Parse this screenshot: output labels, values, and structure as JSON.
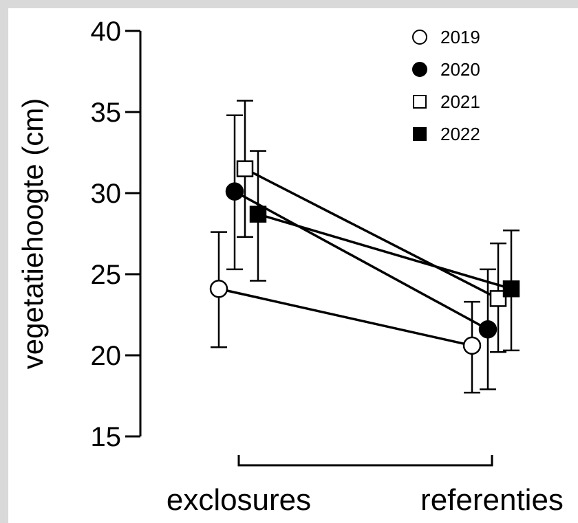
{
  "chart_data": {
    "type": "scatter",
    "ylabel": "vegetatiehoogte (cm)",
    "xlabel": "",
    "categories": [
      "exclosures",
      "referenties"
    ],
    "ylim": [
      15,
      40
    ],
    "yticks": [
      15,
      20,
      25,
      30,
      35,
      40
    ],
    "grid": false,
    "legend_position": "top-right",
    "series": [
      {
        "name": "2019",
        "marker": "circle",
        "fill": "#ffffff",
        "values": [
          24.1,
          20.6
        ],
        "err_low": [
          20.5,
          17.7
        ],
        "err_high": [
          27.6,
          23.3
        ]
      },
      {
        "name": "2020",
        "marker": "circle",
        "fill": "#000000",
        "values": [
          30.1,
          21.6
        ],
        "err_low": [
          25.3,
          17.9
        ],
        "err_high": [
          34.8,
          25.3
        ]
      },
      {
        "name": "2021",
        "marker": "square",
        "fill": "#ffffff",
        "values": [
          31.5,
          23.5
        ],
        "err_low": [
          27.3,
          20.2
        ],
        "err_high": [
          35.7,
          26.9
        ]
      },
      {
        "name": "2022",
        "marker": "square",
        "fill": "#000000",
        "values": [
          28.7,
          24.1
        ],
        "err_low": [
          24.6,
          20.3
        ],
        "err_high": [
          32.6,
          27.7
        ]
      }
    ]
  }
}
